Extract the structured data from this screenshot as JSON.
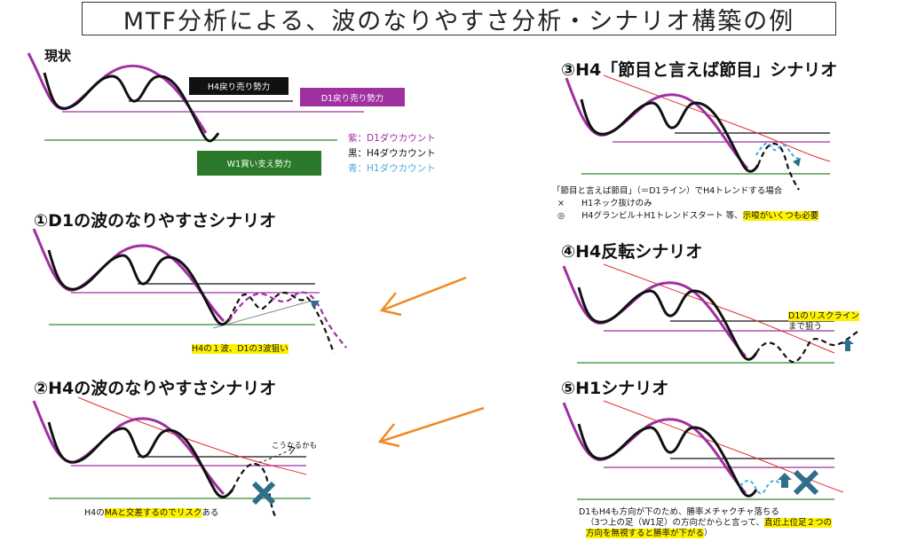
{
  "title": "MTF分析による、波のなりやすさ分析・シナリオ構築の例",
  "colors": {
    "purple": "#a030a0",
    "black": "#111111",
    "blue": "#4aa8e0",
    "green": "#2e8a2e",
    "red": "#e03030",
    "orange": "#f08a24",
    "teal": "#2e6e8a"
  },
  "current": {
    "heading": "現状",
    "bars": {
      "h4_sell": "H4戻り売り勢力",
      "d1_sell": "D1戻り売り勢力",
      "w1_buy": "W1買い支え勢力"
    },
    "legend": [
      "紫：D1ダウカウント",
      "黒：H4ダウカウント",
      "青：H1ダウカウント"
    ]
  },
  "scenarios": {
    "s1": {
      "heading": "①D1の波のなりやすさシナリオ",
      "note": "H4の１波、D1の3波狙い"
    },
    "s2": {
      "heading": "②H4の波のなりやすさシナリオ",
      "maybe": "こうなるかも",
      "note_pre": "H4の",
      "note_hl": "MAと交差するのでリスク",
      "note_post": "ある"
    },
    "s3": {
      "heading": "③H4「節目と言えば節目」シナリオ",
      "line1": "「節目と言えば節目」（＝D1ライン）でH4トレンドする場合",
      "line2": "×　　H1ネック抜けのみ",
      "line3_pre": "◎　　H4グランビル＋H1トレンドスタート 等、",
      "line3_hl": "示唆がいくつも必要"
    },
    "s4": {
      "heading": "④H4反転シナリオ",
      "note1": "D1のリスクライン",
      "note2": "まで狙う"
    },
    "s5": {
      "heading": "⑤H1シナリオ",
      "line1": "D1もH4も方向が下のため、勝率メチャクチャ落ちる",
      "line2_pre": "（3つ上の足（W1足）の方向だからと言って、",
      "line2_hl": "直近上位足２つの",
      "line3_hl": "方向を無視すると勝率が下がる",
      "line3_post": "）"
    }
  }
}
